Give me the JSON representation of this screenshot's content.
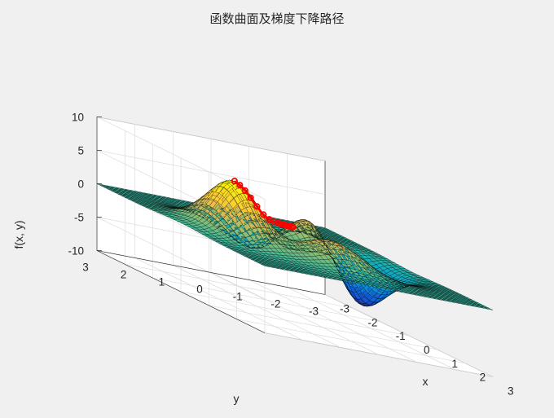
{
  "chart_data": {
    "type": "surface",
    "title": "函数曲面及梯度下降路径",
    "xlabel": "x",
    "ylabel": "y",
    "zlabel": "f(x, y)",
    "xlim": [
      -3,
      3
    ],
    "ylim": [
      -3,
      3
    ],
    "zlim": [
      -10,
      10
    ],
    "xticks": [
      "-3",
      "-2",
      "-1",
      "0",
      "1",
      "2",
      "3"
    ],
    "yticks": [
      "3",
      "2",
      "1",
      "0",
      "-1",
      "-2",
      "-3"
    ],
    "zticks": [
      "10",
      "5",
      "0",
      "-5",
      "-10"
    ],
    "grid": true,
    "colormap": "parula",
    "surface_function": "peaks",
    "mesh_edge_color": "#000000",
    "path_color": "#ff0000",
    "gradient_descent_path": [
      {
        "x": -0.01,
        "y": 1.58,
        "z": 8.1
      },
      {
        "x": 0.0,
        "y": 1.45,
        "z": 7.65
      },
      {
        "x": 0.01,
        "y": 1.32,
        "z": 7.0
      },
      {
        "x": 0.02,
        "y": 1.18,
        "z": 6.1
      },
      {
        "x": 0.04,
        "y": 1.03,
        "z": 5.0
      },
      {
        "x": 0.07,
        "y": 0.88,
        "z": 4.0
      },
      {
        "x": 0.1,
        "y": 0.75,
        "z": 3.5
      },
      {
        "x": 0.13,
        "y": 0.64,
        "z": 3.3
      },
      {
        "x": 0.16,
        "y": 0.56,
        "z": 3.25
      },
      {
        "x": 0.18,
        "y": 0.5,
        "z": 3.23
      },
      {
        "x": 0.2,
        "y": 0.45,
        "z": 3.23
      },
      {
        "x": 0.22,
        "y": 0.41,
        "z": 3.24
      },
      {
        "x": 0.24,
        "y": 0.37,
        "z": 3.25
      },
      {
        "x": 0.26,
        "y": 0.33,
        "z": 3.26
      },
      {
        "x": 0.28,
        "y": 0.29,
        "z": 3.27
      },
      {
        "x": 0.29,
        "y": 0.27,
        "z": 3.28
      }
    ]
  }
}
